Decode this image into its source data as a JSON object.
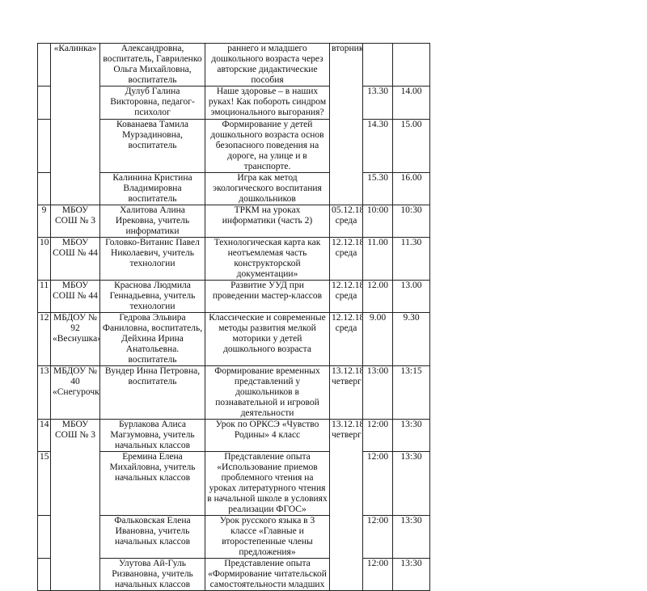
{
  "rows": [
    {
      "num": "",
      "school": "«Калинка»",
      "person": "Александровна, воспитатель, Гавриленко Ольга Михайловна, воспитатель",
      "topic": "раннего и младшего дошкольного возраста через авторские дидактические пособия",
      "date": "вторник",
      "start": "",
      "end": ""
    },
    {
      "num": "",
      "person": "Дулуб Галина Викторовна, педагог-психолог",
      "topic": "Наше здоровье – в наших руках! Как побороть синдром эмоционального выгорания?",
      "start": "13.30",
      "end": "14.00"
    },
    {
      "num": "",
      "person": "Кованаева Тамила Мурзадиновна, воспитатель",
      "topic": "Формирование у детей дошкольного возраста основ безопасного поведения на дороге, на улице и в транспорте.",
      "start": "14.30",
      "end": "15.00"
    },
    {
      "num": "",
      "person": "Калинина Кристина Владимировна воспитатель",
      "topic": "Игра как метод экологического воспитания дошкольников",
      "start": "15.30",
      "end": "16.00"
    },
    {
      "num": "9",
      "school": "МБОУ СОШ № 3",
      "person": "Халитова Алина Ирековна, учитель информатики",
      "topic": "ТРКМ на уроках информатики (часть 2)",
      "date": "05.12.18 среда",
      "start": "10:00",
      "end": "10:30"
    },
    {
      "num": "10",
      "school": "МБОУ СОШ № 44",
      "person": "Головко-Витанис Павел Николаевич, учитель технологии",
      "topic": "Технологическая карта как неотъемлемая часть конструкторской документации»",
      "date": "12.12.18 среда",
      "start": "11.00",
      "end": "11.30"
    },
    {
      "num": "11",
      "school": "МБОУ СОШ № 44",
      "person": "Краснова Людмила Геннадьевна, учитель технологии",
      "topic": "Развитие УУД при проведении мастер-классов",
      "date": "12.12.18 среда",
      "start": "12.00",
      "end": "13.00"
    },
    {
      "num": "12",
      "school": "МБДОУ № 92 «Веснушка»",
      "person": "Гедрова Эльвира Фаниловна, воспитатель, Дейхина Ирина Анатольевна. воспитатель",
      "topic": "Классические и современные методы развития мелкой моторики у детей дошкольного возраста",
      "date": "12.12.18 среда",
      "start": "9.00",
      "end": "9.30"
    },
    {
      "num": "13",
      "school": "МБДОУ № 40 «Снегурочка»",
      "person": "Вундер Инна Петровна, воспитатель",
      "topic": "Формирование временных представлений у дошкольников в познавательной и игровой деятельности",
      "date": "13.12.18 четверг",
      "start": "13:00",
      "end": "13:15"
    },
    {
      "num": "14",
      "school": "МБОУ СОШ № 3",
      "person": "Бурлакова Алиса Магзумовна, учитель начальных классов",
      "topic": "Урок по ОРКСЭ «Чувство Родины» 4 класс",
      "date": "13.12.18 четверг",
      "start": "12:00",
      "end": "13:30"
    },
    {
      "num": "15",
      "person": "Еремина Елена Михайловна, учитель начальных классов",
      "topic": "Представление опыта «Использование приемов проблемного чтения на уроках литературного чтения в начальной школе в условиях реализации ФГОС»",
      "start": "12:00",
      "end": "13:30"
    },
    {
      "num": "",
      "person": "Фальковская Елена Ивановна, учитель начальных классов",
      "topic": "Урок русского языка в 3 классе «Главные и второстепенные члены предложения»",
      "start": "12:00",
      "end": "13:30"
    },
    {
      "num": "",
      "person": "Улутова Ай-Гуль Ризвановна, учитель начальных классов",
      "topic": "Представление опыта «Формирование читательской самостоятельности младших",
      "start": "12:00",
      "end": "13:30"
    }
  ]
}
